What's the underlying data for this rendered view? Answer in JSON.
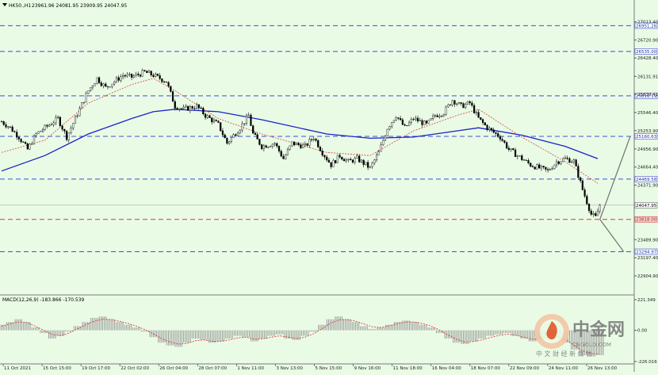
{
  "header": {
    "symbol": "HK50.,H1",
    "ohlc": "23961.96 24081.95 23909.95 24047.95"
  },
  "chart_data": {
    "type": "candlestick",
    "symbol": "HK50.,H1",
    "price_ticks": [
      "27013.40",
      "26720.90",
      "26428.40",
      "26131.91",
      "25839.41",
      "25546.40",
      "25253.90",
      "24956.90",
      "24664.40",
      "24371.90",
      "23489.90",
      "23197.40",
      "22904.90"
    ],
    "ylim": [
      22750,
      27200
    ],
    "hlines": [
      {
        "value": 26951.26,
        "label": "26951.26",
        "style": "dashed",
        "color": "#3a4fd8"
      },
      {
        "value": 26535.0,
        "label": "26535.00",
        "style": "dashed",
        "color": "#3a4fd8"
      },
      {
        "value": 25816.19,
        "label": "25816.19",
        "style": "dashed",
        "color": "#3a4fd8"
      },
      {
        "value": 25160.63,
        "label": "25160.63",
        "style": "dashed",
        "color": "#3a4fd8"
      },
      {
        "value": 24469.58,
        "label": "24469.58",
        "style": "dashed",
        "color": "#3a4fd8"
      },
      {
        "value": 23818.0,
        "label": "23818.00",
        "style": "dashed",
        "color": "#d83a3a"
      },
      {
        "value": 23294.97,
        "label": "23294.97",
        "style": "dashed",
        "color": "#3a4fd8"
      }
    ],
    "current_price": {
      "value": 24047.95,
      "label": "24047.95"
    },
    "x_labels": [
      "11 Oct 2021",
      "15 Oct 15:00",
      "19 Oct 17:00",
      "22 Oct 02:00",
      "26 Oct 04:00",
      "28 Oct 07:00",
      "1 Nov 11:00",
      "3 Nov 13:00",
      "5 Nov 15:00",
      "9 Nov 16:00",
      "11 Nov 18:00",
      "16 Nov 04:00",
      "18 Nov 07:00",
      "22 Nov 09:00",
      "24 Nov 11:00",
      "26 Nov 13:00"
    ],
    "close_path": [
      [
        0,
        25400
      ],
      [
        4,
        25300
      ],
      [
        8,
        25150
      ],
      [
        12,
        24950
      ],
      [
        16,
        25200
      ],
      [
        20,
        25300
      ],
      [
        26,
        25450
      ],
      [
        30,
        25150
      ],
      [
        36,
        25600
      ],
      [
        40,
        25900
      ],
      [
        44,
        26100
      ],
      [
        48,
        25950
      ],
      [
        52,
        26050
      ],
      [
        56,
        26150
      ],
      [
        60,
        26120
      ],
      [
        66,
        26200
      ],
      [
        70,
        26150
      ],
      [
        76,
        26050
      ],
      [
        80,
        25650
      ],
      [
        84,
        25600
      ],
      [
        90,
        25650
      ],
      [
        94,
        25500
      ],
      [
        100,
        25350
      ],
      [
        104,
        25050
      ],
      [
        110,
        25300
      ],
      [
        114,
        25500
      ],
      [
        116,
        25200
      ],
      [
        120,
        25000
      ],
      [
        126,
        25050
      ],
      [
        130,
        24800
      ],
      [
        134,
        25050
      ],
      [
        140,
        25000
      ],
      [
        144,
        25150
      ],
      [
        148,
        24900
      ],
      [
        152,
        24700
      ],
      [
        156,
        24850
      ],
      [
        160,
        24750
      ],
      [
        164,
        24800
      ],
      [
        170,
        24650
      ],
      [
        174,
        24900
      ],
      [
        178,
        25300
      ],
      [
        182,
        25500
      ],
      [
        186,
        25300
      ],
      [
        190,
        25450
      ],
      [
        196,
        25350
      ],
      [
        200,
        25500
      ],
      [
        204,
        25550
      ],
      [
        208,
        25750
      ],
      [
        212,
        25650
      ],
      [
        216,
        25700
      ],
      [
        220,
        25450
      ],
      [
        224,
        25300
      ],
      [
        230,
        25150
      ],
      [
        234,
        24950
      ],
      [
        238,
        24850
      ],
      [
        244,
        24700
      ],
      [
        248,
        24650
      ],
      [
        252,
        24600
      ],
      [
        256,
        24750
      ],
      [
        260,
        24800
      ],
      [
        264,
        24760
      ],
      [
        268,
        24300
      ],
      [
        272,
        23900
      ],
      [
        274,
        23850
      ],
      [
        276,
        24047.95
      ]
    ],
    "ma_slow": [
      [
        0,
        24600
      ],
      [
        20,
        24850
      ],
      [
        40,
        25200
      ],
      [
        60,
        25450
      ],
      [
        70,
        25560
      ],
      [
        80,
        25600
      ],
      [
        100,
        25560
      ],
      [
        120,
        25430
      ],
      [
        150,
        25200
      ],
      [
        170,
        25130
      ],
      [
        190,
        25150
      ],
      [
        210,
        25250
      ],
      [
        220,
        25300
      ],
      [
        240,
        25180
      ],
      [
        260,
        25000
      ],
      [
        275,
        24800
      ]
    ],
    "ma_fast": [
      [
        0,
        24900
      ],
      [
        20,
        25100
      ],
      [
        40,
        25700
      ],
      [
        60,
        26000
      ],
      [
        70,
        26100
      ],
      [
        80,
        25900
      ],
      [
        100,
        25450
      ],
      [
        120,
        25200
      ],
      [
        150,
        24900
      ],
      [
        170,
        24850
      ],
      [
        190,
        25250
      ],
      [
        210,
        25500
      ],
      [
        220,
        25600
      ],
      [
        240,
        25150
      ],
      [
        260,
        24750
      ],
      [
        275,
        24400
      ]
    ],
    "projection": [
      [
        276,
        23818
      ],
      [
        290,
        25160.63
      ],
      [
        276,
        23818
      ],
      [
        287,
        23294.97
      ]
    ],
    "macd": {
      "label": "MACD(12,26,9) -183.866 -170.539",
      "ticks": [
        "221.349",
        "0.00",
        "-226.016"
      ],
      "ylim": [
        -226.016,
        221.349
      ],
      "histogram": [
        40,
        60,
        80,
        60,
        20,
        -20,
        -60,
        -40,
        -10,
        30,
        60,
        90,
        100,
        80,
        60,
        40,
        20,
        -10,
        -50,
        -90,
        -110,
        -120,
        -90,
        -60,
        -70,
        -90,
        -80,
        -60,
        -40,
        -50,
        -80,
        -60,
        -40,
        -30,
        -60,
        -70,
        -40,
        -10,
        40,
        80,
        100,
        80,
        60,
        30,
        10,
        20,
        40,
        60,
        70,
        60,
        40,
        20,
        -20,
        -60,
        -90,
        -100,
        -80,
        -60,
        -40,
        -30,
        -20,
        -40,
        -60,
        -80,
        -60,
        -40,
        -50,
        -90,
        -140,
        -180,
        -190,
        -180
      ],
      "signal": [
        30,
        45,
        60,
        55,
        30,
        0,
        -30,
        -40,
        -20,
        10,
        40,
        65,
        80,
        78,
        65,
        50,
        30,
        5,
        -25,
        -60,
        -85,
        -100,
        -95,
        -75,
        -70,
        -80,
        -80,
        -70,
        -55,
        -50,
        -65,
        -62,
        -50,
        -40,
        -50,
        -60,
        -50,
        -25,
        10,
        50,
        75,
        78,
        66,
        45,
        25,
        20,
        32,
        48,
        60,
        60,
        48,
        30,
        0,
        -35,
        -65,
        -85,
        -82,
        -70,
        -52,
        -38,
        -28,
        -35,
        -50,
        -65,
        -62,
        -50,
        -48,
        -70,
        -110,
        -150,
        -170,
        -171
      ]
    }
  },
  "watermark": {
    "brand": "中金网",
    "slogan": "中 文 财 经 新 媒 体",
    "url": "CNGOLD.COM"
  }
}
